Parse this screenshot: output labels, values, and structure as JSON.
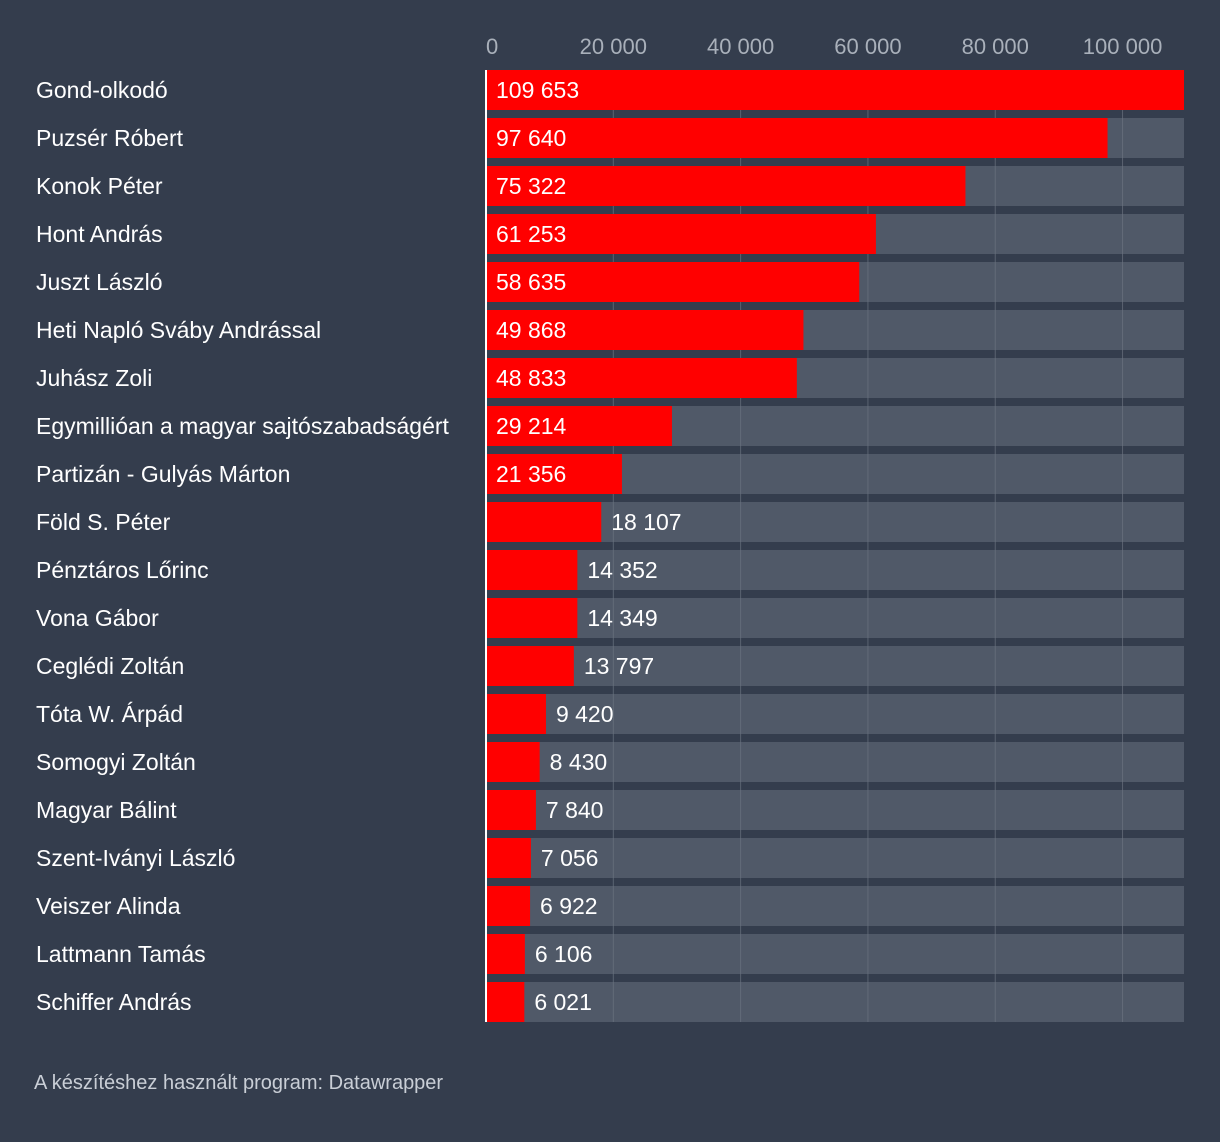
{
  "chart_data": {
    "type": "bar",
    "orientation": "horizontal",
    "categories": [
      "Gond-olkodó",
      "Puzsér Róbert",
      "Konok Péter",
      "Hont András",
      "Juszt László",
      "Heti Napló Sváby Andrással",
      "Juhász Zoli",
      "Egymillióan a magyar sajtószabadságért",
      "Partizán - Gulyás Márton",
      "Föld S. Péter",
      "Pénztáros Lőrinc",
      "Vona Gábor",
      "Ceglédi Zoltán",
      "Tóta W. Árpád",
      "Somogyi Zoltán",
      "Magyar Bálint",
      "Szent-Iványi László",
      "Veiszer Alinda",
      "Lattmann Tamás",
      "Schiffer András"
    ],
    "values": [
      109653,
      97640,
      75322,
      61253,
      58635,
      49868,
      48833,
      29214,
      21356,
      18107,
      14352,
      14349,
      13797,
      9420,
      8430,
      7840,
      7056,
      6922,
      6106,
      6021
    ],
    "value_labels": [
      "109 653",
      "97 640",
      "75 322",
      "61 253",
      "58 635",
      "49 868",
      "48 833",
      "29 214",
      "21 356",
      "18 107",
      "14 352",
      "14 349",
      "13 797",
      "9 420",
      "8 430",
      "7 840",
      "7 056",
      "6 922",
      "6 106",
      "6 021"
    ],
    "xlim": [
      0,
      109653
    ],
    "ticks": [
      0,
      20000,
      40000,
      60000,
      80000,
      100000
    ],
    "tick_labels": [
      "0",
      "20 000",
      "40 000",
      "60 000",
      "80 000",
      "100 000"
    ],
    "gridlines": true,
    "axis_position": "top",
    "colors": {
      "bar": "#ff0000",
      "track": "#505968",
      "background": "#343d4d",
      "text": "#ffffff",
      "tick_text": "#a9b0ba",
      "grid": "#6b7380",
      "baseline": "#ffffff"
    }
  },
  "footer": {
    "source_text": "A készítéshez használt program: Datawrapper"
  }
}
